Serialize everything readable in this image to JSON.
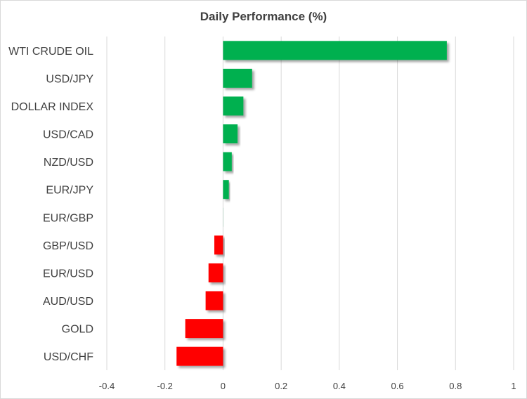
{
  "chart_data": {
    "type": "bar",
    "orientation": "horizontal",
    "title": "Daily Performance (%)",
    "xlabel": "",
    "ylabel": "",
    "categories": [
      "WTI CRUDE OIL",
      "USD/JPY",
      "DOLLAR INDEX",
      "USD/CAD",
      "NZD/USD",
      "EUR/JPY",
      "EUR/GBP",
      "GBP/USD",
      "EUR/USD",
      "AUD/USD",
      "GOLD",
      "USD/CHF"
    ],
    "values": [
      0.77,
      0.1,
      0.07,
      0.05,
      0.03,
      0.02,
      0.0,
      -0.03,
      -0.05,
      -0.06,
      -0.13,
      -0.16
    ],
    "xlim": [
      -0.4,
      1.0
    ],
    "xticks": [
      -0.4,
      -0.2,
      0,
      0.2,
      0.4,
      0.6,
      0.8,
      1
    ],
    "xtick_labels": [
      "-0.4",
      "-0.2",
      "0",
      "0.2",
      "0.4",
      "0.6",
      "0.8",
      "1"
    ],
    "grid": true,
    "colors": {
      "positive": "#00b050",
      "negative": "#ff0000",
      "grid": "#d9d9d9",
      "text": "#404040"
    }
  }
}
